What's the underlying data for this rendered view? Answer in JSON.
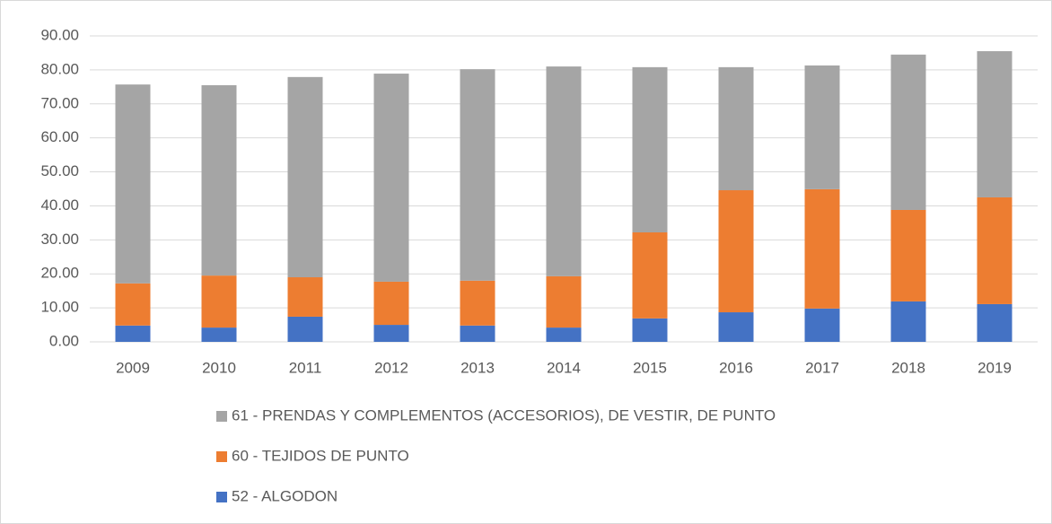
{
  "chart_data": {
    "type": "stacked_bar",
    "categories": [
      "2009",
      "2010",
      "2011",
      "2012",
      "2013",
      "2014",
      "2015",
      "2016",
      "2017",
      "2018",
      "2019"
    ],
    "series": [
      {
        "name": "52 - ALGODON",
        "color": "#4472c4",
        "values": [
          4.8,
          4.2,
          7.4,
          5.0,
          4.8,
          4.2,
          6.9,
          8.7,
          9.8,
          11.9,
          11.1
        ]
      },
      {
        "name": "60 - TEJIDOS DE PUNTO",
        "color": "#ed7d31",
        "values": [
          12.4,
          15.3,
          11.6,
          12.7,
          13.2,
          15.1,
          25.3,
          35.9,
          35.1,
          26.9,
          31.4
        ]
      },
      {
        "name": "61 - PRENDAS Y COMPLEMENTOS (ACCESORIOS), DE VESTIR, DE PUNTO",
        "color": "#a5a5a5",
        "values": [
          58.5,
          56.0,
          58.9,
          61.2,
          62.2,
          61.7,
          48.6,
          36.2,
          36.4,
          45.7,
          43.0
        ]
      }
    ],
    "ylim": [
      0,
      90
    ],
    "yticks": [
      {
        "value": 0,
        "label": "0.00"
      },
      {
        "value": 10,
        "label": "10.00"
      },
      {
        "value": 20,
        "label": "20.00"
      },
      {
        "value": 30,
        "label": "30.00"
      },
      {
        "value": 40,
        "label": "40.00"
      },
      {
        "value": 50,
        "label": "50.00"
      },
      {
        "value": 60,
        "label": "60.00"
      },
      {
        "value": 70,
        "label": "70.00"
      },
      {
        "value": 80,
        "label": "80.00"
      },
      {
        "value": 90,
        "label": "90.00"
      }
    ],
    "grid": true,
    "legend": "bottom"
  }
}
